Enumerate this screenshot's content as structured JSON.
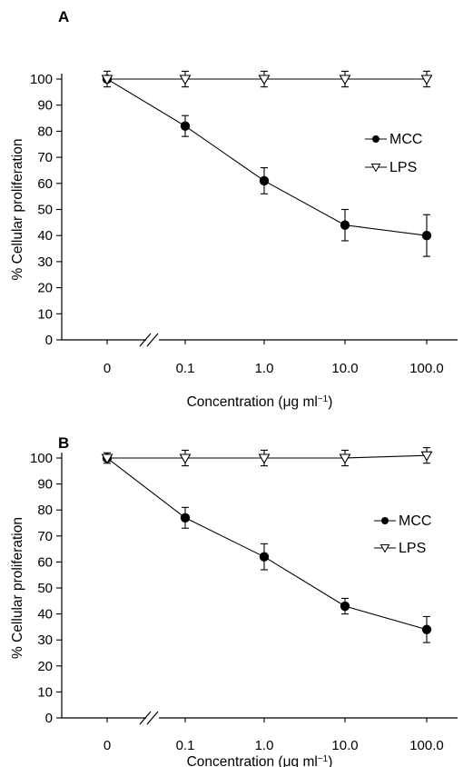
{
  "chart_data": [
    {
      "type": "line",
      "panel_label": "A",
      "xlabel": "Concentration (μg ml",
      "xlabel_sup": "−1",
      "ylabel": "% Cellular proliferation",
      "ylim": [
        0,
        100
      ],
      "yticks": [
        "0",
        "10",
        "20",
        "30",
        "40",
        "50",
        "60",
        "70",
        "80",
        "90",
        "100"
      ],
      "categories": [
        "0",
        "0.1",
        "1.0",
        "10.0",
        "100.0"
      ],
      "axis_break": true,
      "grid": false,
      "legend_position": "right",
      "series": [
        {
          "name": "MCC",
          "marker": "filled-circle",
          "values": [
            100,
            82,
            61,
            44,
            40
          ],
          "errors": [
            1,
            4,
            5,
            6,
            8
          ]
        },
        {
          "name": "LPS",
          "marker": "open-triangle-down",
          "values": [
            100,
            100,
            100,
            100,
            100
          ],
          "errors": [
            3,
            3,
            3,
            3,
            3
          ]
        }
      ]
    },
    {
      "type": "line",
      "panel_label": "B",
      "xlabel": "Concentration (μg ml",
      "xlabel_sup": "−1",
      "ylabel": "% Cellular proliferation",
      "ylim": [
        0,
        100
      ],
      "yticks": [
        "0",
        "10",
        "20",
        "30",
        "40",
        "50",
        "60",
        "70",
        "80",
        "90",
        "100"
      ],
      "categories": [
        "0",
        "0.1",
        "1.0",
        "10.0",
        "100.0"
      ],
      "axis_break": true,
      "grid": false,
      "legend_position": "right",
      "series": [
        {
          "name": "MCC",
          "marker": "filled-circle",
          "values": [
            100,
            77,
            62,
            43,
            34
          ],
          "errors": [
            1,
            4,
            5,
            3,
            5
          ]
        },
        {
          "name": "LPS",
          "marker": "open-triangle-down",
          "values": [
            100,
            100,
            100,
            100,
            101
          ],
          "errors": [
            2,
            3,
            3,
            3,
            3
          ]
        }
      ]
    }
  ]
}
